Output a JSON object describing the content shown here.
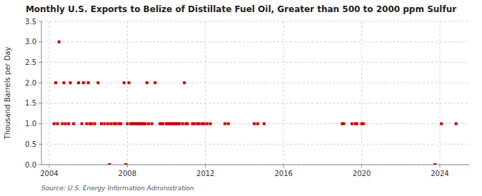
{
  "chart_data": {
    "type": "scatter",
    "title": "Monthly U.S. Exports to Belize of Distillate Fuel Oil, Greater than 500 to 2000 ppm Sulfur",
    "y_label": "Thousand Barrels per Day",
    "annotations": [
      "Source: U.S. Energy Information Administration"
    ],
    "color": "#cc0000",
    "marker": "square",
    "grid": true,
    "xlim": [
      2003.6,
      2025.5
    ],
    "xticks": [
      2004,
      2008,
      2012,
      2016,
      2020,
      2024
    ],
    "ylim": [
      0.0,
      3.5
    ],
    "yticks": [
      {
        "value": 0.0,
        "label": "0.0"
      },
      0.5,
      {
        "value": 1.0,
        "label": "1.0"
      },
      1.5,
      {
        "value": 2.0,
        "label": "2.0"
      },
      2.5,
      {
        "value": 3.0,
        "label": "3.0"
      },
      3.5
    ],
    "x": [
      2004.25,
      2004.33,
      2004.42,
      2004.5,
      2004.67,
      2004.75,
      2004.83,
      2005.0,
      2005.08,
      2005.25,
      2005.5,
      2005.67,
      2005.75,
      2005.92,
      2006.0,
      2006.08,
      2006.17,
      2006.33,
      2006.5,
      2006.67,
      2006.83,
      2007.0,
      2007.08,
      2007.17,
      2007.33,
      2007.42,
      2007.58,
      2007.67,
      2007.83,
      2007.92,
      2008.0,
      2008.08,
      2008.17,
      2008.25,
      2008.33,
      2008.42,
      2008.5,
      2008.58,
      2008.67,
      2008.75,
      2008.83,
      2008.92,
      2009.0,
      2009.08,
      2009.25,
      2009.42,
      2009.67,
      2009.75,
      2009.83,
      2010.0,
      2010.08,
      2010.17,
      2010.25,
      2010.33,
      2010.42,
      2010.5,
      2010.58,
      2010.67,
      2010.83,
      2010.92,
      2011.0,
      2011.08,
      2011.33,
      2011.42,
      2011.58,
      2011.67,
      2011.83,
      2011.92,
      2012.08,
      2012.25,
      2013.0,
      2013.17,
      2014.5,
      2014.67,
      2015.0,
      2019.0,
      2019.08,
      2019.5,
      2019.67,
      2019.75,
      2020.0,
      2020.08,
      2023.75,
      2024.08,
      2024.83
    ],
    "values": [
      1.0,
      2.0,
      1.0,
      3.0,
      1.0,
      2.0,
      1.0,
      1.0,
      2.0,
      1.0,
      2.0,
      1.0,
      2.0,
      1.0,
      2.0,
      1.0,
      1.0,
      1.0,
      2.0,
      1.0,
      1.0,
      1.0,
      0.0,
      1.0,
      1.0,
      1.0,
      1.0,
      1.0,
      2.0,
      0.0,
      1.0,
      2.0,
      1.0,
      1.0,
      1.0,
      1.0,
      1.0,
      1.0,
      1.0,
      1.0,
      1.0,
      1.0,
      2.0,
      1.0,
      1.0,
      2.0,
      1.0,
      1.0,
      1.0,
      1.0,
      1.0,
      1.0,
      1.0,
      1.0,
      1.0,
      1.0,
      1.0,
      1.0,
      1.0,
      2.0,
      1.0,
      1.0,
      1.0,
      1.0,
      1.0,
      1.0,
      1.0,
      1.0,
      1.0,
      1.0,
      1.0,
      1.0,
      1.0,
      1.0,
      1.0,
      1.0,
      1.0,
      1.0,
      1.0,
      1.0,
      1.0,
      1.0,
      0.0,
      1.0,
      1.0
    ]
  }
}
